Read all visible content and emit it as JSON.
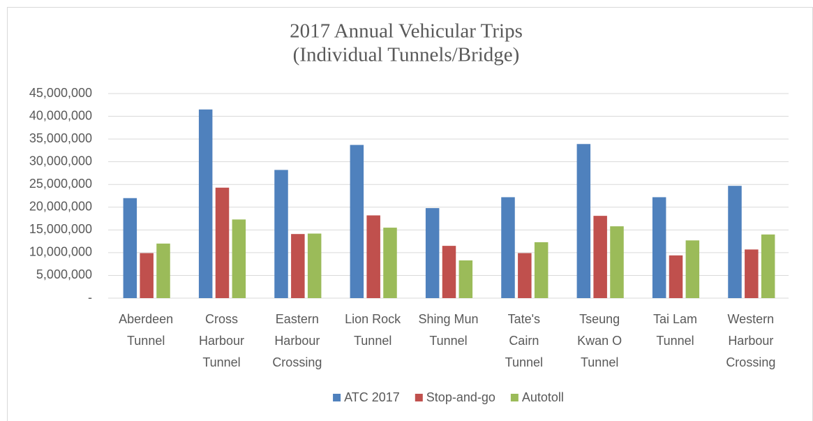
{
  "chart_data": {
    "type": "bar",
    "title": [
      "2017 Annual Vehicular Trips",
      "(Individual Tunnels/Bridge)"
    ],
    "categories": [
      [
        "Aberdeen",
        "Tunnel"
      ],
      [
        "Cross",
        "Harbour",
        "Tunnel"
      ],
      [
        "Eastern",
        "Harbour",
        "Crossing"
      ],
      [
        "Lion Rock",
        "Tunnel"
      ],
      [
        "Shing Mun",
        "Tunnel"
      ],
      [
        "Tate's",
        "Cairn",
        "Tunnel"
      ],
      [
        "Tseung",
        "Kwan O",
        "Tunnel"
      ],
      [
        "Tai Lam",
        "Tunnel"
      ],
      [
        "Western",
        "Harbour",
        "Crossing"
      ]
    ],
    "series": [
      {
        "name": "ATC 2017",
        "color": "#4f81bd",
        "values": [
          22000000,
          41500000,
          28200000,
          33700000,
          19800000,
          22200000,
          33900000,
          22200000,
          24700000
        ]
      },
      {
        "name": "Stop-and-go",
        "color": "#c0504d",
        "values": [
          9900000,
          24300000,
          14100000,
          18200000,
          11500000,
          9900000,
          18100000,
          9400000,
          10700000
        ]
      },
      {
        "name": "Autotoll",
        "color": "#9bbb59",
        "values": [
          12000000,
          17300000,
          14200000,
          15500000,
          8300000,
          12300000,
          15800000,
          12700000,
          14000000
        ]
      }
    ],
    "ylim": [
      0,
      45000000
    ],
    "yticks": [
      {
        "value": 0,
        "label": "-"
      },
      {
        "value": 5000000,
        "label": "5,000,000"
      },
      {
        "value": 10000000,
        "label": "10,000,000"
      },
      {
        "value": 15000000,
        "label": "15,000,000"
      },
      {
        "value": 20000000,
        "label": "20,000,000"
      },
      {
        "value": 25000000,
        "label": "25,000,000"
      },
      {
        "value": 30000000,
        "label": "30,000,000"
      },
      {
        "value": 35000000,
        "label": "35,000,000"
      },
      {
        "value": 40000000,
        "label": "40,000,000"
      },
      {
        "value": 45000000,
        "label": "45,000,000"
      }
    ],
    "grid": true,
    "legend": "bottom"
  }
}
